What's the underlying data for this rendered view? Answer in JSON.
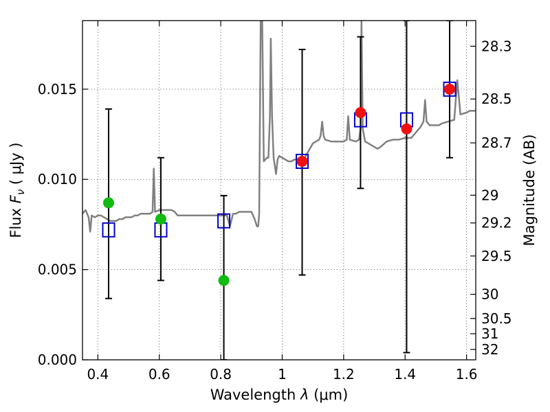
{
  "chart_data": {
    "type": "scatter",
    "xlabel_main": "Wavelength",
    "xlabel_symbol": "λ",
    "xlabel_unit": "(μm)",
    "ylabel_main": "Flux",
    "ylabel_symbol": "F",
    "ylabel_subscript": "ν",
    "ylabel_unit": "( μJy )",
    "y2label": "Magnitude (AB)",
    "xlim": [
      0.35,
      1.63
    ],
    "ylim": [
      0.0,
      0.0188
    ],
    "x_ticks": [
      0.4,
      0.6,
      0.8,
      1.0,
      1.2,
      1.4,
      1.6
    ],
    "x_tick_labels": [
      "0.4",
      "0.6",
      "0.8",
      "1",
      "1.2",
      "1.4",
      "1.6"
    ],
    "y_ticks": [
      0.0,
      0.005,
      0.01,
      0.015
    ],
    "y_tick_labels": [
      "0.000",
      "0.005",
      "0.010",
      "0.015"
    ],
    "y2_ticks": [
      28.3,
      28.5,
      28.7,
      29,
      29.2,
      29.5,
      30,
      30.5,
      31,
      32
    ],
    "y2_tick_labels": [
      "28.3",
      "28.5",
      "28.7",
      "29",
      "29.2",
      "29.5",
      "30",
      "30.5",
      "31",
      "32"
    ],
    "grid": true,
    "colors": {
      "spectrum": "#808080",
      "model_box": "#0000cc",
      "optical_point": "#11bb11",
      "nir_point": "#ee1111",
      "errorbar": "#000000"
    },
    "spectrum": [
      [
        0.35,
        0.0081
      ],
      [
        0.355,
        0.0082
      ],
      [
        0.36,
        0.0083
      ],
      [
        0.365,
        0.0081
      ],
      [
        0.37,
        0.0079
      ],
      [
        0.375,
        0.0071
      ],
      [
        0.38,
        0.008
      ],
      [
        0.39,
        0.0079
      ],
      [
        0.4,
        0.008
      ],
      [
        0.41,
        0.008
      ],
      [
        0.42,
        0.0079
      ],
      [
        0.43,
        0.0078
      ],
      [
        0.44,
        0.0077
      ],
      [
        0.45,
        0.0077
      ],
      [
        0.46,
        0.0077
      ],
      [
        0.47,
        0.0078
      ],
      [
        0.48,
        0.0078
      ],
      [
        0.49,
        0.0079
      ],
      [
        0.5,
        0.0079
      ],
      [
        0.51,
        0.0079
      ],
      [
        0.52,
        0.008
      ],
      [
        0.53,
        0.008
      ],
      [
        0.54,
        0.0081
      ],
      [
        0.55,
        0.0081
      ],
      [
        0.56,
        0.0081
      ],
      [
        0.57,
        0.0081
      ],
      [
        0.578,
        0.0082
      ],
      [
        0.582,
        0.0106
      ],
      [
        0.586,
        0.0082
      ],
      [
        0.6,
        0.0083
      ],
      [
        0.61,
        0.0083
      ],
      [
        0.62,
        0.0083
      ],
      [
        0.63,
        0.0083
      ],
      [
        0.64,
        0.0083
      ],
      [
        0.65,
        0.0082
      ],
      [
        0.66,
        0.008
      ],
      [
        0.67,
        0.008
      ],
      [
        0.68,
        0.008
      ],
      [
        0.7,
        0.008
      ],
      [
        0.72,
        0.008
      ],
      [
        0.74,
        0.008
      ],
      [
        0.76,
        0.008
      ],
      [
        0.78,
        0.008
      ],
      [
        0.79,
        0.008
      ],
      [
        0.8,
        0.008
      ],
      [
        0.815,
        0.008
      ],
      [
        0.82,
        0.008
      ],
      [
        0.83,
        0.0074
      ],
      [
        0.84,
        0.0081
      ],
      [
        0.85,
        0.0081
      ],
      [
        0.86,
        0.0082
      ],
      [
        0.88,
        0.0082
      ],
      [
        0.9,
        0.0082
      ],
      [
        0.91,
        0.0078
      ],
      [
        0.918,
        0.0074
      ],
      [
        0.922,
        0.0074
      ],
      [
        0.925,
        0.0081
      ],
      [
        0.93,
        0.0188
      ],
      [
        0.935,
        0.0188
      ],
      [
        0.94,
        0.011
      ],
      [
        0.95,
        0.0112
      ],
      [
        0.955,
        0.0112
      ],
      [
        0.96,
        0.0135
      ],
      [
        0.963,
        0.0178
      ],
      [
        0.967,
        0.0135
      ],
      [
        0.972,
        0.0112
      ],
      [
        0.98,
        0.0103
      ],
      [
        0.985,
        0.0111
      ],
      [
        0.99,
        0.0113
      ],
      [
        1.0,
        0.0112
      ],
      [
        1.01,
        0.0111
      ],
      [
        1.02,
        0.011
      ],
      [
        1.03,
        0.011
      ],
      [
        1.04,
        0.0111
      ],
      [
        1.05,
        0.0111
      ],
      [
        1.06,
        0.0111
      ],
      [
        1.07,
        0.0111
      ],
      [
        1.08,
        0.0114
      ],
      [
        1.09,
        0.0117
      ],
      [
        1.1,
        0.012
      ],
      [
        1.11,
        0.0121
      ],
      [
        1.12,
        0.0122
      ],
      [
        1.125,
        0.0124
      ],
      [
        1.13,
        0.0132
      ],
      [
        1.135,
        0.0124
      ],
      [
        1.14,
        0.0122
      ],
      [
        1.16,
        0.0121
      ],
      [
        1.18,
        0.0121
      ],
      [
        1.2,
        0.0121
      ],
      [
        1.21,
        0.0122
      ],
      [
        1.215,
        0.0135
      ],
      [
        1.22,
        0.0122
      ],
      [
        1.24,
        0.0121
      ],
      [
        1.25,
        0.0122
      ],
      [
        1.255,
        0.0128
      ],
      [
        1.258,
        0.0188
      ],
      [
        1.262,
        0.0128
      ],
      [
        1.27,
        0.0121
      ],
      [
        1.28,
        0.012
      ],
      [
        1.3,
        0.0118
      ],
      [
        1.31,
        0.0117
      ],
      [
        1.32,
        0.0118
      ],
      [
        1.34,
        0.0121
      ],
      [
        1.36,
        0.0122
      ],
      [
        1.38,
        0.0122
      ],
      [
        1.4,
        0.0123
      ],
      [
        1.42,
        0.0123
      ],
      [
        1.44,
        0.0127
      ],
      [
        1.45,
        0.0129
      ],
      [
        1.46,
        0.0132
      ],
      [
        1.465,
        0.0144
      ],
      [
        1.47,
        0.0132
      ],
      [
        1.48,
        0.013
      ],
      [
        1.5,
        0.013
      ],
      [
        1.51,
        0.013
      ],
      [
        1.52,
        0.0131
      ],
      [
        1.54,
        0.0132
      ],
      [
        1.56,
        0.0133
      ],
      [
        1.57,
        0.0155
      ],
      [
        1.58,
        0.0136
      ],
      [
        1.6,
        0.0137
      ],
      [
        1.61,
        0.0138
      ],
      [
        1.63,
        0.0138
      ]
    ],
    "model_boxes": [
      {
        "x": 0.435,
        "y": 0.0072
      },
      {
        "x": 0.605,
        "y": 0.0072
      },
      {
        "x": 0.81,
        "y": 0.0077
      },
      {
        "x": 1.065,
        "y": 0.011
      },
      {
        "x": 1.255,
        "y": 0.0133
      },
      {
        "x": 1.405,
        "y": 0.0133
      },
      {
        "x": 1.545,
        "y": 0.015
      }
    ],
    "observed": [
      {
        "x": 0.435,
        "y": 0.0087,
        "ylow": 0.0034,
        "yhigh": 0.0139,
        "band": "optical"
      },
      {
        "x": 0.605,
        "y": 0.0078,
        "ylow": 0.0044,
        "yhigh": 0.0112,
        "band": "optical"
      },
      {
        "x": 0.81,
        "y": 0.0044,
        "ylow": 0.0,
        "yhigh": 0.0091,
        "band": "optical"
      },
      {
        "x": 1.065,
        "y": 0.011,
        "ylow": 0.0047,
        "yhigh": 0.0172,
        "band": "nir"
      },
      {
        "x": 1.255,
        "y": 0.0137,
        "ylow": 0.0095,
        "yhigh": 0.0179,
        "band": "nir"
      },
      {
        "x": 1.405,
        "y": 0.0128,
        "ylow": 0.0004,
        "yhigh": 0.0188,
        "band": "nir"
      },
      {
        "x": 1.545,
        "y": 0.015,
        "ylow": 0.0112,
        "yhigh": 0.0188,
        "band": "nir"
      }
    ]
  }
}
